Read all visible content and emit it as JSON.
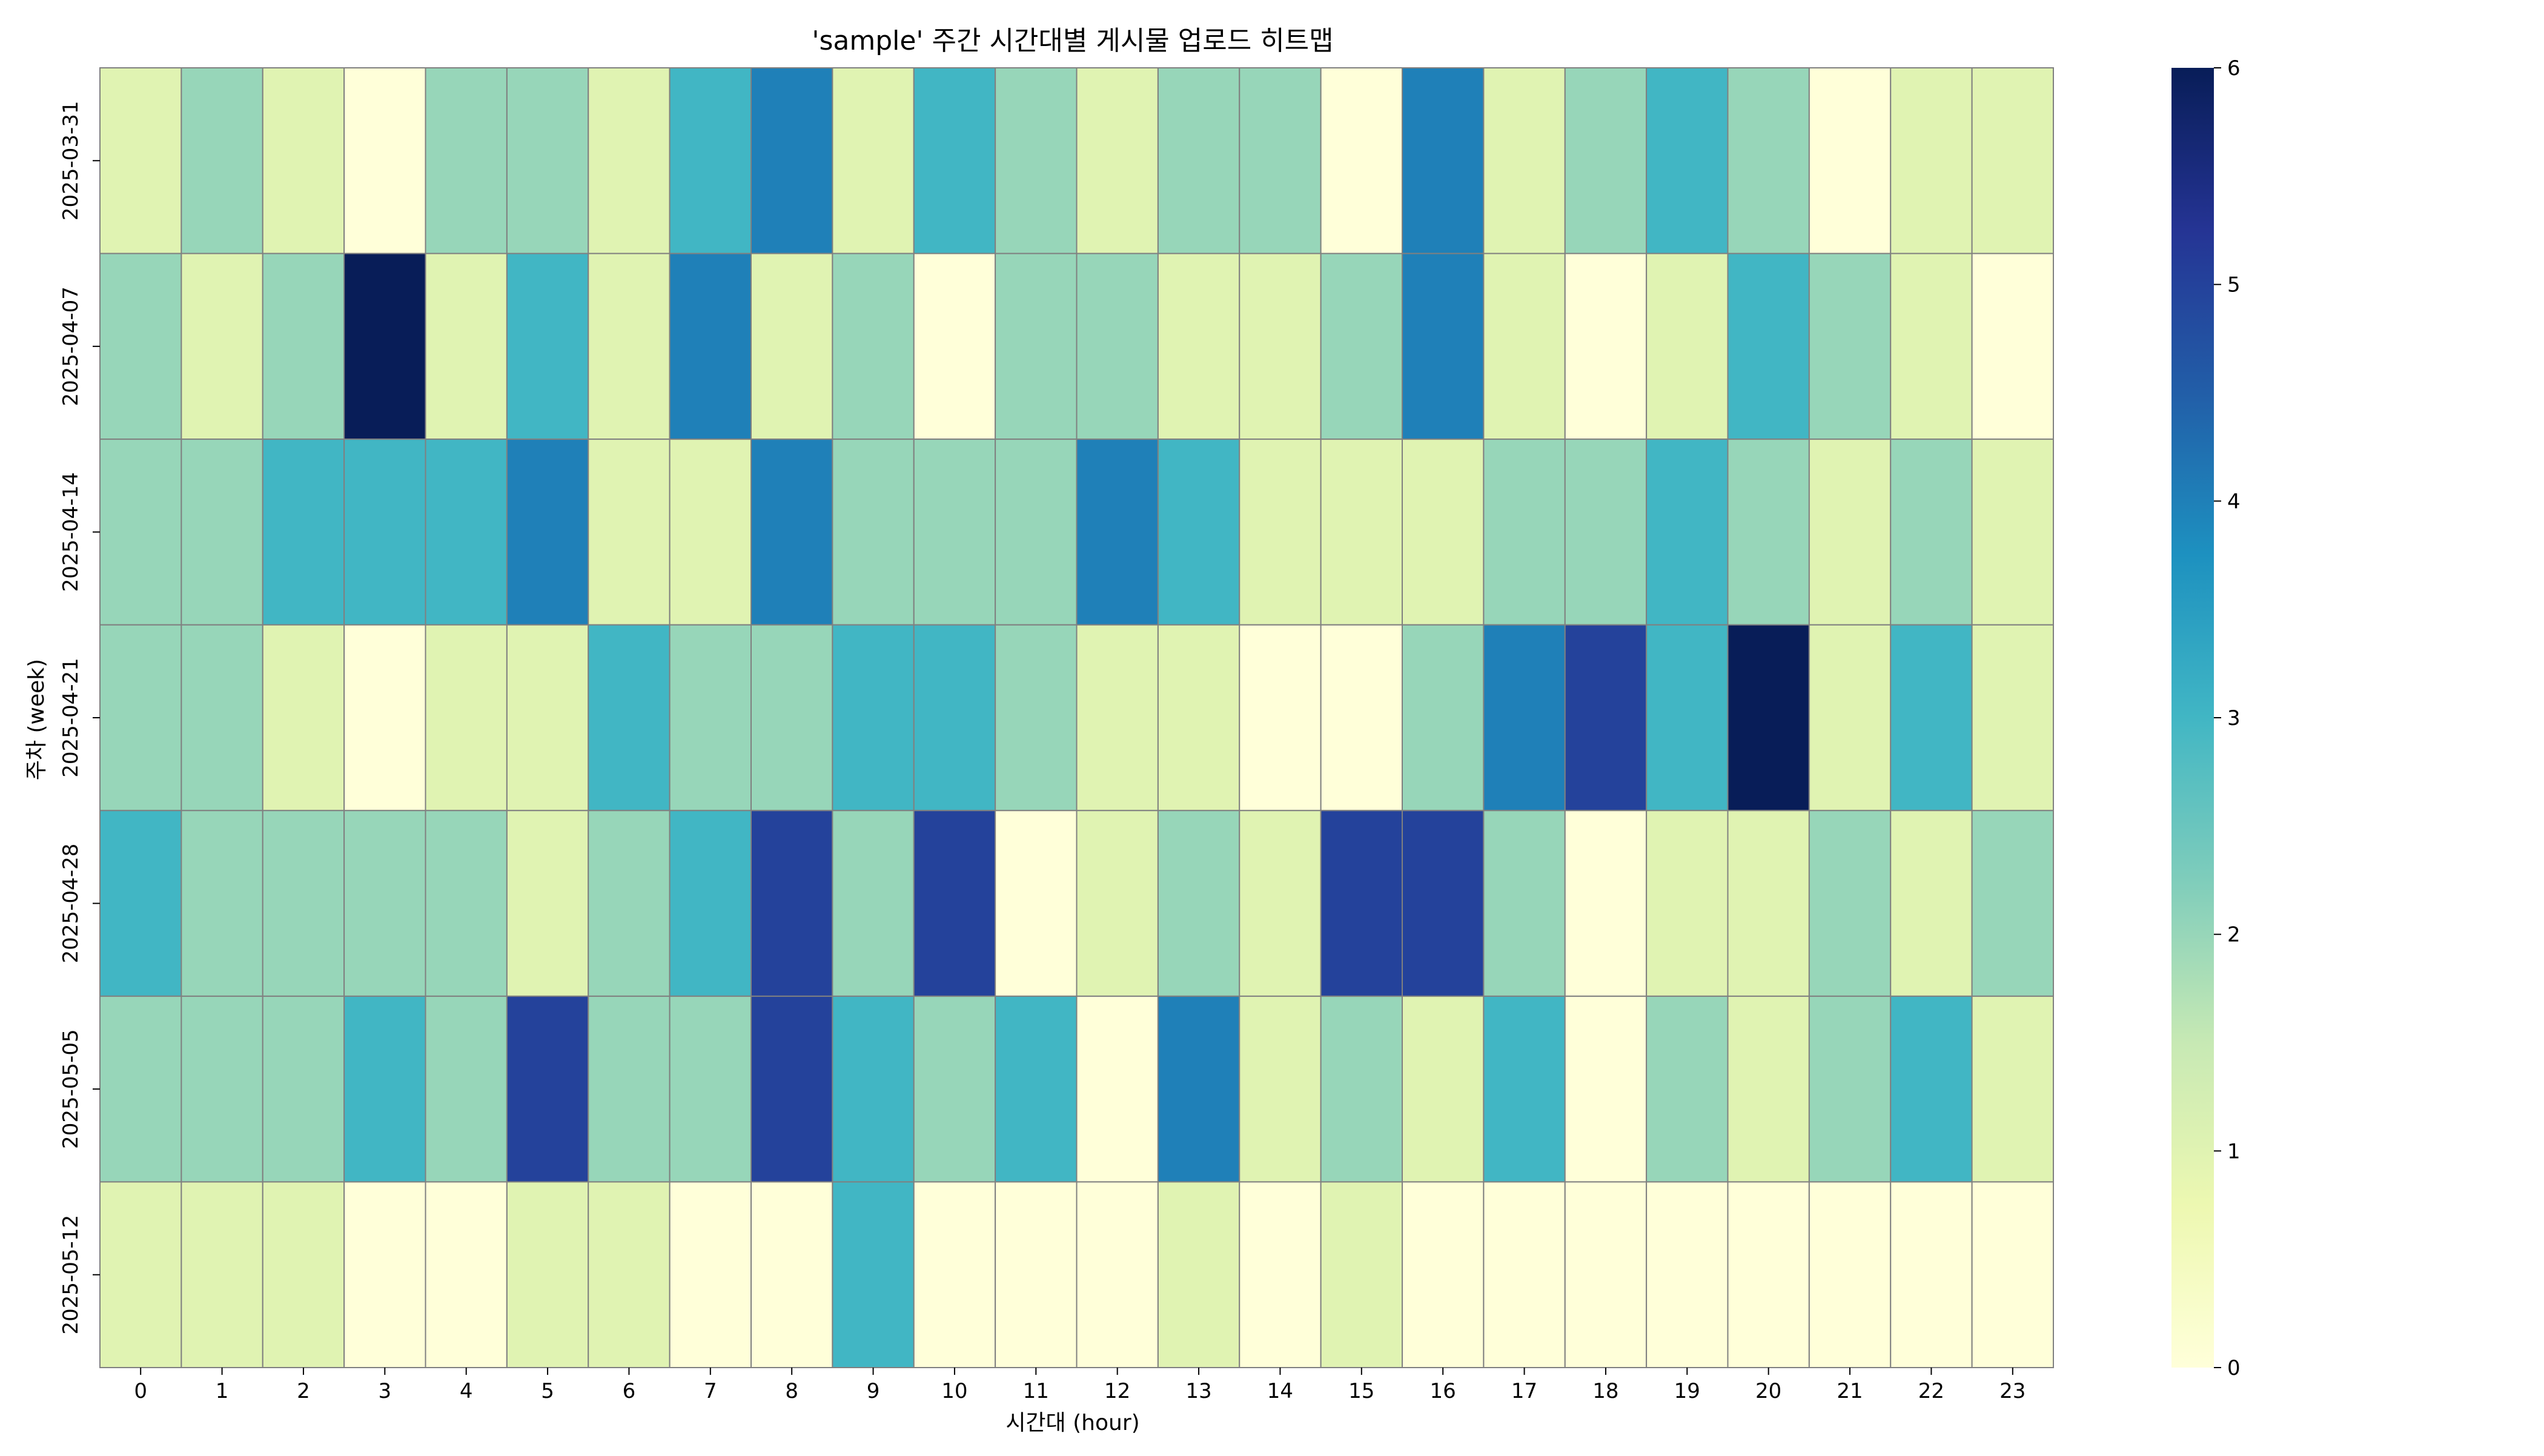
{
  "chart_data": {
    "type": "heatmap",
    "title": "'sample' 주간 시간대별 게시물 업로드 히트맵",
    "xlabel": "시간대 (hour)",
    "ylabel": "주차 (week)",
    "x_categories": [
      "0",
      "1",
      "2",
      "3",
      "4",
      "5",
      "6",
      "7",
      "8",
      "9",
      "10",
      "11",
      "12",
      "13",
      "14",
      "15",
      "16",
      "17",
      "18",
      "19",
      "20",
      "21",
      "22",
      "23"
    ],
    "y_categories": [
      "2025-03-31",
      "2025-04-07",
      "2025-04-14",
      "2025-04-21",
      "2025-04-28",
      "2025-05-05",
      "2025-05-12"
    ],
    "values": [
      [
        1,
        2,
        1,
        0,
        2,
        2,
        1,
        3,
        4,
        1,
        3,
        2,
        1,
        2,
        2,
        0,
        4,
        1,
        2,
        3,
        2,
        0,
        1,
        1
      ],
      [
        2,
        1,
        2,
        6,
        1,
        3,
        1,
        4,
        1,
        2,
        0,
        2,
        2,
        1,
        1,
        2,
        4,
        1,
        0,
        1,
        3,
        2,
        1,
        0
      ],
      [
        2,
        2,
        3,
        3,
        3,
        4,
        1,
        1,
        4,
        2,
        2,
        2,
        4,
        3,
        1,
        1,
        1,
        2,
        2,
        3,
        2,
        1,
        2,
        1
      ],
      [
        2,
        2,
        1,
        0,
        1,
        1,
        3,
        2,
        2,
        3,
        3,
        2,
        1,
        1,
        0,
        0,
        2,
        4,
        5,
        3,
        6,
        1,
        3,
        1
      ],
      [
        3,
        2,
        2,
        2,
        2,
        1,
        2,
        3,
        5,
        2,
        5,
        0,
        1,
        2,
        1,
        5,
        5,
        2,
        0,
        1,
        1,
        2,
        1,
        2
      ],
      [
        2,
        2,
        2,
        3,
        2,
        5,
        2,
        2,
        5,
        3,
        2,
        3,
        0,
        4,
        1,
        2,
        1,
        3,
        0,
        2,
        1,
        2,
        3,
        1
      ],
      [
        1,
        1,
        1,
        0,
        0,
        1,
        1,
        0,
        0,
        3,
        0,
        0,
        0,
        1,
        0,
        1,
        0,
        0,
        0,
        0,
        0,
        0,
        0,
        0
      ]
    ],
    "colorbar": {
      "min": 0,
      "max": 6,
      "ticks": [
        "0",
        "1",
        "2",
        "3",
        "4",
        "5",
        "6"
      ]
    },
    "colormap": "YlGnBu",
    "cell_border_color": "#808080",
    "colormap_stops": [
      "#ffffd9",
      "#edf8b1",
      "#c7e9b4",
      "#7fcdbb",
      "#41b6c4",
      "#1d91c0",
      "#225ea8",
      "#253494",
      "#081d58"
    ]
  }
}
